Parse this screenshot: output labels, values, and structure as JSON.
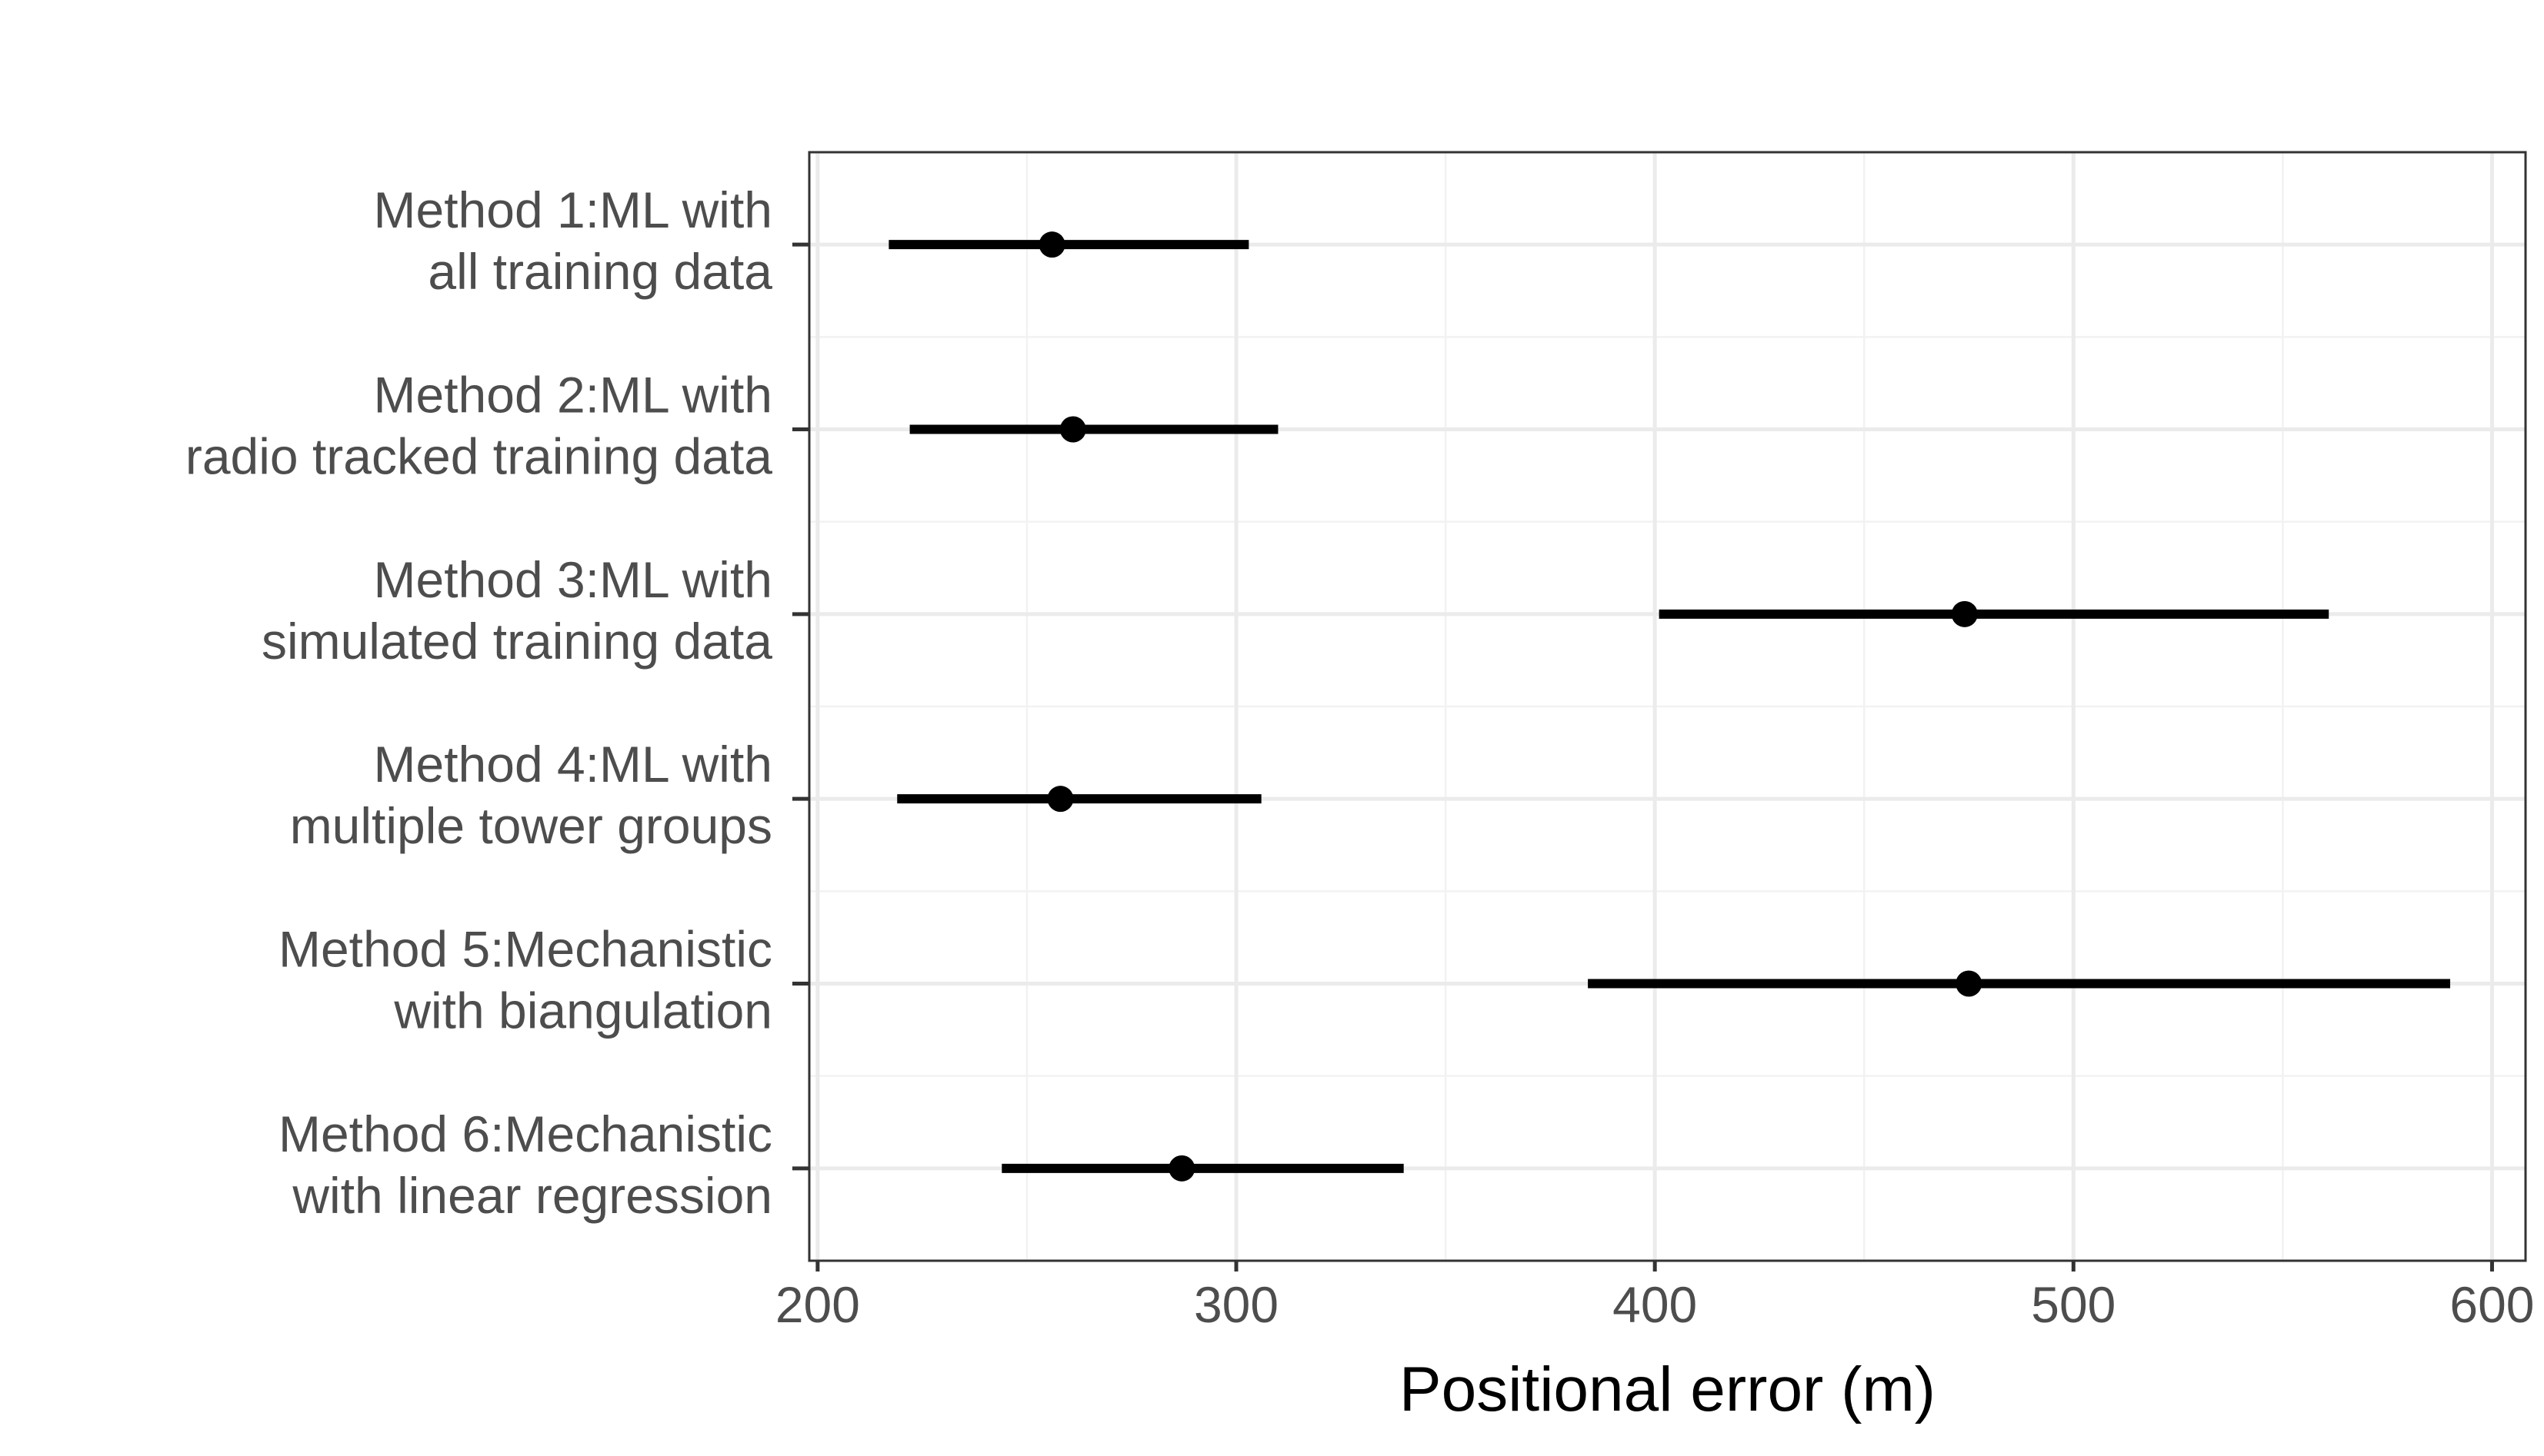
{
  "chart_data": {
    "type": "scatter",
    "subtype": "point-range",
    "title": "",
    "xlabel": "Positional error (m)",
    "ylabel": "",
    "xlim": [
      198,
      608
    ],
    "xticks": [
      200,
      300,
      400,
      500,
      600
    ],
    "grid": true,
    "legend": "none",
    "categories": [
      [
        "Method 1:ML with",
        "all training data"
      ],
      [
        "Method 2:ML with",
        "radio tracked training data"
      ],
      [
        "Method 3:ML with",
        "simulated training data"
      ],
      [
        "Method 4:ML with",
        "multiple tower groups"
      ],
      [
        "Method 5:Mechanistic",
        "with biangulation"
      ],
      [
        "Method 6:Mechanistic",
        "with linear regression"
      ]
    ],
    "series": [
      {
        "estimate": [
          256,
          261,
          474,
          258,
          475,
          287
        ],
        "lower": [
          217,
          222,
          401,
          219,
          384,
          244
        ],
        "upper": [
          303,
          310,
          561,
          306,
          590,
          340
        ]
      }
    ],
    "colors": {
      "mark": "#000000",
      "grid_major": "#ebebeb",
      "grid_minor": "#f2f2f2",
      "panel_border": "#333333",
      "tick_text": "#4d4d4d",
      "title_text": "#000000"
    }
  }
}
